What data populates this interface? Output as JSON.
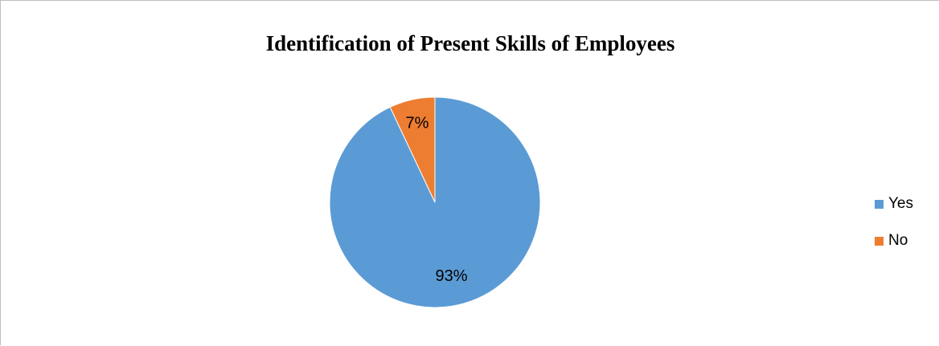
{
  "chart_data": {
    "type": "pie",
    "title": "Identification of Present Skills of Employees",
    "categories": [
      "Yes",
      "No"
    ],
    "values": [
      93,
      7
    ],
    "data_labels": [
      "93%",
      "7%"
    ],
    "colors": [
      "#5b9bd5",
      "#ed7d31"
    ],
    "legend": "right"
  }
}
